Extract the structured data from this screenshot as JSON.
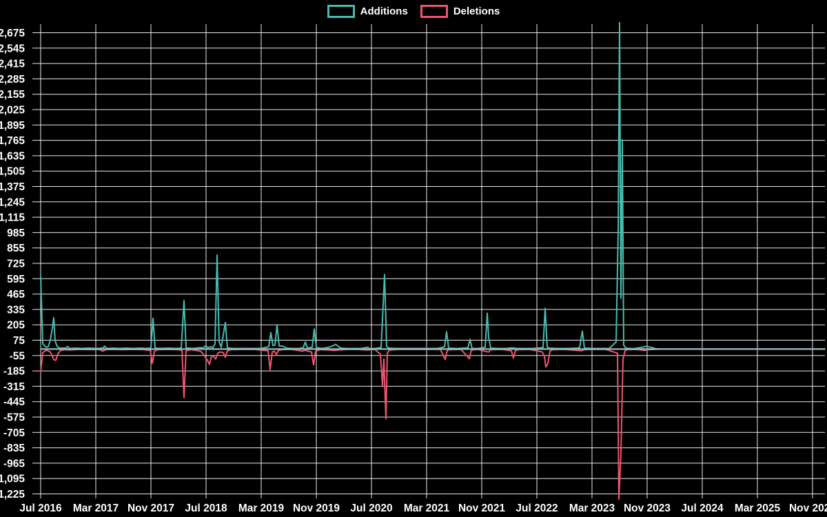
{
  "chart_data": {
    "type": "line",
    "title": "",
    "description": "Code-frequency style chart of weekly additions and deletions, Jul 2016 through Nov 2025, on a black background with white gridlines.",
    "legend": [
      {
        "name": "Additions",
        "color": "#47bcb1"
      },
      {
        "name": "Deletions",
        "color": "#ef5670"
      }
    ],
    "legend_position": "top-center",
    "grid": true,
    "colors": {
      "background": "#000000",
      "gridline": "#ffffff",
      "text": "#ffffff",
      "zero_baseline_overlap": "#9fb8c0"
    },
    "x_axis": {
      "unit": "months since Jul 2016",
      "labels": [
        "Jul 2016",
        "Mar 2017",
        "Nov 2017",
        "Jul 2018",
        "Mar 2019",
        "Nov 2019",
        "Jul 2020",
        "Mar 2021",
        "Nov 2021",
        "Jul 2022",
        "Mar 2023",
        "Nov 2023",
        "Jul 2024",
        "Mar 2025",
        "Nov 2025"
      ],
      "months_between_labels": 8
    },
    "y_axis": {
      "min": -1225,
      "max": 2675,
      "step": 130,
      "tick_labels": [
        "2,675",
        "2,545",
        "2,415",
        "2,285",
        "2,155",
        "2,025",
        "1,895",
        "1,765",
        "1,635",
        "1,505",
        "1,375",
        "1,245",
        "1,115",
        "985",
        "855",
        "725",
        "595",
        "465",
        "335",
        "205",
        "75",
        "-55",
        "-185",
        "-315",
        "-445",
        "-575",
        "-705",
        "-835",
        "-965",
        "-1,095",
        "-1,225"
      ]
    },
    "series": [
      {
        "name": "Additions",
        "color": "#47bcb1",
        "points": [
          [
            0,
            610
          ],
          [
            0.3,
            45
          ],
          [
            0.8,
            15
          ],
          [
            1.1,
            20
          ],
          [
            1.4,
            75
          ],
          [
            1.7,
            180
          ],
          [
            1.9,
            265
          ],
          [
            2.1,
            70
          ],
          [
            2.4,
            20
          ],
          [
            2.8,
            8
          ],
          [
            3.6,
            8
          ],
          [
            3.9,
            22
          ],
          [
            4.2,
            5
          ],
          [
            5,
            8
          ],
          [
            6,
            5
          ],
          [
            7,
            8
          ],
          [
            8,
            5
          ],
          [
            9,
            8
          ],
          [
            9.3,
            25
          ],
          [
            9.6,
            5
          ],
          [
            10.5,
            8
          ],
          [
            11.5,
            5
          ],
          [
            12.5,
            8
          ],
          [
            13.5,
            5
          ],
          [
            14.5,
            8
          ],
          [
            15.5,
            5
          ],
          [
            16,
            12
          ],
          [
            16.3,
            260
          ],
          [
            16.6,
            8
          ],
          [
            17.5,
            5
          ],
          [
            18.5,
            8
          ],
          [
            19.5,
            5
          ],
          [
            20.4,
            8
          ],
          [
            20.8,
            410
          ],
          [
            21.1,
            10
          ],
          [
            22,
            5
          ],
          [
            23.3,
            12
          ],
          [
            23.6,
            8
          ],
          [
            23.9,
            28
          ],
          [
            24.3,
            12
          ],
          [
            24.7,
            20
          ],
          [
            25,
            10
          ],
          [
            25.3,
            45
          ],
          [
            25.6,
            795
          ],
          [
            25.9,
            60
          ],
          [
            26.2,
            15
          ],
          [
            26.8,
            225
          ],
          [
            27.1,
            10
          ],
          [
            27.8,
            5
          ],
          [
            29,
            5
          ],
          [
            30,
            5
          ],
          [
            31,
            5
          ],
          [
            32,
            5
          ],
          [
            33.1,
            20
          ],
          [
            33.4,
            140
          ],
          [
            33.7,
            30
          ],
          [
            34,
            35
          ],
          [
            34.3,
            205
          ],
          [
            34.6,
            28
          ],
          [
            35.3,
            22
          ],
          [
            35.6,
            8
          ],
          [
            36.5,
            5
          ],
          [
            37.5,
            5
          ],
          [
            38.1,
            12
          ],
          [
            38.4,
            60
          ],
          [
            38.7,
            8
          ],
          [
            39.4,
            15
          ],
          [
            39.7,
            170
          ],
          [
            40,
            12
          ],
          [
            40.8,
            5
          ],
          [
            41.8,
            15
          ],
          [
            42.4,
            28
          ],
          [
            42.8,
            40
          ],
          [
            43.2,
            22
          ],
          [
            43.6,
            8
          ],
          [
            44.5,
            5
          ],
          [
            45.5,
            5
          ],
          [
            46.5,
            5
          ],
          [
            47.4,
            15
          ],
          [
            47.7,
            5
          ],
          [
            48.5,
            5
          ],
          [
            49.4,
            12
          ],
          [
            49.7,
            380
          ],
          [
            49.9,
            630
          ],
          [
            50.2,
            25
          ],
          [
            50.5,
            8
          ],
          [
            51.5,
            5
          ],
          [
            53,
            5
          ],
          [
            54.5,
            5
          ],
          [
            56,
            5
          ],
          [
            57.5,
            5
          ],
          [
            58.6,
            18
          ],
          [
            58.9,
            146
          ],
          [
            59.2,
            8
          ],
          [
            60.5,
            5
          ],
          [
            62,
            10
          ],
          [
            62.3,
            82
          ],
          [
            62.6,
            5
          ],
          [
            63.5,
            5
          ],
          [
            64.5,
            15
          ],
          [
            64.8,
            303
          ],
          [
            65,
            100
          ],
          [
            65.3,
            8
          ],
          [
            66.5,
            5
          ],
          [
            67.5,
            5
          ],
          [
            68.4,
            10
          ],
          [
            68.8,
            8
          ],
          [
            69.1,
            5
          ],
          [
            70.5,
            5
          ],
          [
            71.5,
            5
          ],
          [
            72.9,
            12
          ],
          [
            73.2,
            345
          ],
          [
            73.5,
            18
          ],
          [
            73.8,
            8
          ],
          [
            75,
            5
          ],
          [
            76.5,
            5
          ],
          [
            77.8,
            8
          ],
          [
            78.2,
            12
          ],
          [
            78.6,
            152
          ],
          [
            78.9,
            8
          ],
          [
            80,
            5
          ],
          [
            81.5,
            5
          ],
          [
            82.5,
            5
          ],
          [
            83.5,
            60
          ],
          [
            83.8,
            1000
          ],
          [
            84,
            2760
          ],
          [
            84.2,
            430
          ],
          [
            84.4,
            1770
          ],
          [
            84.6,
            35
          ],
          [
            84.9,
            8
          ],
          [
            86,
            3
          ],
          [
            87.5,
            18
          ],
          [
            87.9,
            25
          ],
          [
            88.3,
            18
          ],
          [
            88.8,
            12
          ],
          [
            89.2,
            3
          ],
          [
            90,
            0
          ],
          [
            113.8,
            0
          ]
        ]
      },
      {
        "name": "Deletions",
        "color": "#ef5670",
        "points": [
          [
            0,
            -195
          ],
          [
            0.3,
            -30
          ],
          [
            0.8,
            -10
          ],
          [
            1.3,
            -20
          ],
          [
            1.6,
            -45
          ],
          [
            1.9,
            -90
          ],
          [
            2.2,
            -95
          ],
          [
            2.5,
            -40
          ],
          [
            2.9,
            -12
          ],
          [
            3.5,
            -5
          ],
          [
            4.2,
            -8
          ],
          [
            5.5,
            -3
          ],
          [
            7,
            -5
          ],
          [
            8.5,
            -3
          ],
          [
            9,
            -18
          ],
          [
            9.4,
            -5
          ],
          [
            10.5,
            -3
          ],
          [
            12,
            -5
          ],
          [
            13.5,
            -3
          ],
          [
            15,
            -5
          ],
          [
            15.9,
            -12
          ],
          [
            16.2,
            -120
          ],
          [
            16.5,
            -18
          ],
          [
            17,
            -5
          ],
          [
            18.5,
            -3
          ],
          [
            20,
            -5
          ],
          [
            20.5,
            -12
          ],
          [
            20.8,
            -410
          ],
          [
            21.1,
            -15
          ],
          [
            21.8,
            -5
          ],
          [
            23.2,
            -18
          ],
          [
            23.5,
            -35
          ],
          [
            23.8,
            -60
          ],
          [
            24.2,
            -95
          ],
          [
            24.5,
            -130
          ],
          [
            24.8,
            -55
          ],
          [
            25.1,
            -65
          ],
          [
            25.4,
            -85
          ],
          [
            25.7,
            -35
          ],
          [
            26,
            -25
          ],
          [
            26.5,
            -30
          ],
          [
            26.8,
            -70
          ],
          [
            27.1,
            -15
          ],
          [
            27.6,
            -5
          ],
          [
            29,
            -3
          ],
          [
            31,
            -3
          ],
          [
            33,
            -15
          ],
          [
            33.3,
            -175
          ],
          [
            33.6,
            -25
          ],
          [
            33.9,
            -18
          ],
          [
            34.2,
            -45
          ],
          [
            34.5,
            -12
          ],
          [
            35,
            -5
          ],
          [
            36.5,
            -3
          ],
          [
            38,
            -18
          ],
          [
            38.3,
            -10
          ],
          [
            39.3,
            -25
          ],
          [
            39.6,
            -135
          ],
          [
            39.9,
            -18
          ],
          [
            40.6,
            -5
          ],
          [
            42,
            -8
          ],
          [
            42.6,
            -12
          ],
          [
            43.2,
            -8
          ],
          [
            44.5,
            -3
          ],
          [
            46,
            -3
          ],
          [
            47.4,
            -8
          ],
          [
            48.5,
            -3
          ],
          [
            49.3,
            -45
          ],
          [
            49.6,
            -310
          ],
          [
            49.8,
            -85
          ],
          [
            50.1,
            -590
          ],
          [
            50.3,
            -35
          ],
          [
            50.6,
            -8
          ],
          [
            52,
            -3
          ],
          [
            54,
            -3
          ],
          [
            56,
            -3
          ],
          [
            58,
            -3
          ],
          [
            58.7,
            -87
          ],
          [
            59,
            -12
          ],
          [
            59.3,
            -5
          ],
          [
            61,
            -3
          ],
          [
            62.2,
            -82
          ],
          [
            62.5,
            -8
          ],
          [
            63.5,
            -3
          ],
          [
            64.7,
            -22
          ],
          [
            65,
            -25
          ],
          [
            65.3,
            -5
          ],
          [
            67,
            -3
          ],
          [
            68.3,
            -15
          ],
          [
            68.6,
            -76
          ],
          [
            68.9,
            -12
          ],
          [
            69.3,
            -5
          ],
          [
            71,
            -3
          ],
          [
            72.8,
            -25
          ],
          [
            73.1,
            -60
          ],
          [
            73.3,
            -152
          ],
          [
            73.6,
            -120
          ],
          [
            73.9,
            -18
          ],
          [
            74.3,
            -5
          ],
          [
            76,
            -3
          ],
          [
            78.5,
            -15
          ],
          [
            78.8,
            -5
          ],
          [
            80,
            -3
          ],
          [
            82,
            -3
          ],
          [
            83.7,
            -35
          ],
          [
            83.9,
            -1270
          ],
          [
            84.2,
            -875
          ],
          [
            84.5,
            -85
          ],
          [
            84.8,
            -15
          ],
          [
            85.1,
            -5
          ],
          [
            86.5,
            -3
          ],
          [
            87.7,
            -12
          ],
          [
            88,
            -5
          ],
          [
            89,
            -3
          ],
          [
            90,
            0
          ],
          [
            113.8,
            0
          ]
        ]
      }
    ]
  }
}
